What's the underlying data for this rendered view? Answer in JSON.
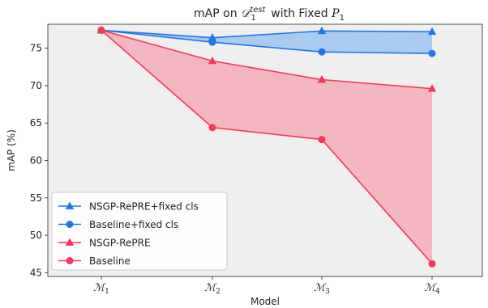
{
  "chart_data": {
    "type": "line",
    "title": "mAP on D1^test with Fixed P1",
    "title_parts": {
      "prefix": "mAP on ",
      "dataset_symbol": "𝒟",
      "dataset_sub": "1",
      "dataset_sup": "test",
      "middle": " with Fixed ",
      "param_symbol": "P",
      "param_sub": "1"
    },
    "xlabel": "Model",
    "ylabel": "mAP (%)",
    "ylim": [
      44.5,
      78.2
    ],
    "yticks": [
      45,
      50,
      55,
      60,
      65,
      70,
      75
    ],
    "categories": [
      "M1",
      "M2",
      "M3",
      "M4"
    ],
    "category_symbols": [
      "ℳ",
      "ℳ",
      "ℳ",
      "ℳ"
    ],
    "category_subs": [
      "1",
      "2",
      "3",
      "4"
    ],
    "grid": false,
    "background": "#efefef",
    "legend_position": "lower-left",
    "series": [
      {
        "name": "NSGP-RePRE+fixed cls",
        "marker": "triangle",
        "color": "#1f77e8",
        "values": [
          77.4,
          76.4,
          77.3,
          77.2
        ]
      },
      {
        "name": "Baseline+fixed cls",
        "marker": "circle",
        "color": "#1f77e8",
        "values": [
          77.4,
          75.8,
          74.5,
          74.3
        ]
      },
      {
        "name": "NSGP-RePRE",
        "marker": "triangle",
        "color": "#f5385a",
        "values": [
          77.4,
          73.3,
          70.8,
          69.6
        ]
      },
      {
        "name": "Baseline",
        "marker": "circle",
        "color": "#f5385a",
        "values": [
          77.4,
          64.4,
          62.8,
          46.2
        ]
      }
    ],
    "fills": [
      {
        "between": [
          "NSGP-RePRE+fixed cls",
          "Baseline+fixed cls"
        ],
        "color": "#a9cbf0"
      },
      {
        "between": [
          "NSGP-RePRE",
          "Baseline"
        ],
        "color": "#f4b6c0"
      }
    ]
  }
}
